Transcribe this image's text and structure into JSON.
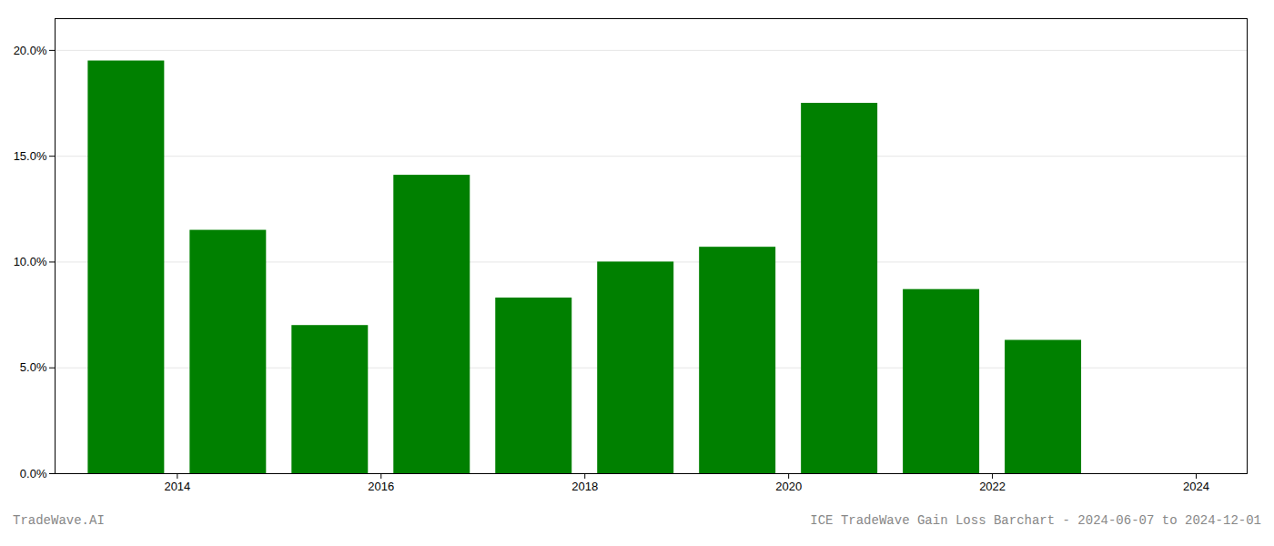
{
  "chart_data": {
    "type": "bar",
    "x": [
      2013.5,
      2014.5,
      2015.5,
      2016.5,
      2017.5,
      2018.5,
      2019.5,
      2020.5,
      2021.5,
      2022.5
    ],
    "values": [
      0.195,
      0.115,
      0.07,
      0.141,
      0.083,
      0.1,
      0.107,
      0.175,
      0.087,
      0.063
    ],
    "color": "#008000",
    "xlim": [
      2012.8,
      2024.5
    ],
    "xticks": [
      2014,
      2016,
      2018,
      2020,
      2022,
      2024
    ],
    "ylim": [
      0.0,
      0.215
    ],
    "yticks": [
      {
        "value": 0.0,
        "label": "0.0%"
      },
      {
        "value": 0.05,
        "label": "5.0%"
      },
      {
        "value": 0.1,
        "label": "10.0%"
      },
      {
        "value": 0.15,
        "label": "15.0%"
      },
      {
        "value": 0.2,
        "label": "20.0%"
      }
    ],
    "grid": true,
    "annotations": [
      "TradeWave.AI",
      "ICE TradeWave Gain Loss Barchart - 2024-06-07 to 2024-12-01"
    ]
  }
}
